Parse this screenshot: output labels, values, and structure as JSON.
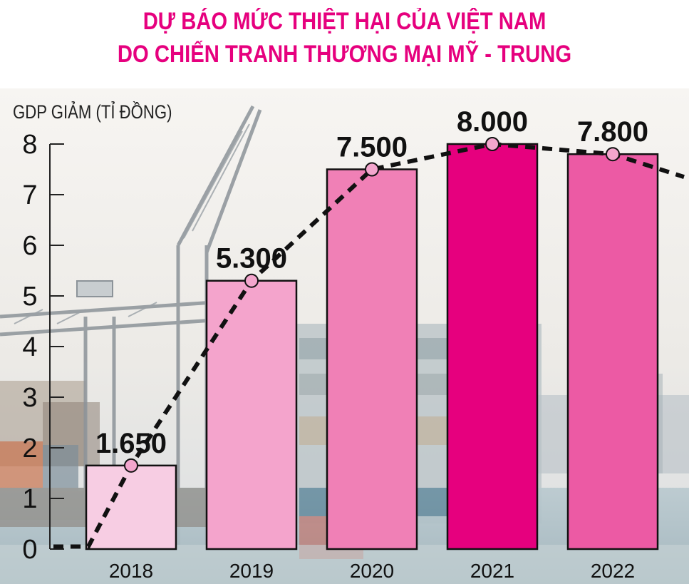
{
  "title_line1": "DỰ BÁO MỨC THIỆT HẠI CỦA VIỆT NAM",
  "title_line2": "DO CHIẾN TRANH THƯƠNG MẠI MỸ - TRUNG",
  "chart_data": {
    "type": "bar",
    "ylabel": "GDP GIẢM (TỈ ĐỒNG)",
    "categories": [
      "2018",
      "2019",
      "2020",
      "2021",
      "2022"
    ],
    "values": [
      1.65,
      5.3,
      7.5,
      8.0,
      7.8
    ],
    "value_labels": [
      "1.650",
      "5.300",
      "7.500",
      "8.000",
      "7.800"
    ],
    "yticks": [
      "0",
      "1",
      "2",
      "3",
      "4",
      "5",
      "6",
      "7",
      "8"
    ],
    "ylim": [
      0,
      8
    ],
    "bar_colors": [
      "#f7cde3",
      "#f4a4cc",
      "#f080b6",
      "#e6007e",
      "#ec5aa4"
    ],
    "trend_line": "dashed",
    "grid": false
  },
  "colors": {
    "title": "#e6007e",
    "axis": "#222222",
    "marker": "#f3a6cd"
  }
}
